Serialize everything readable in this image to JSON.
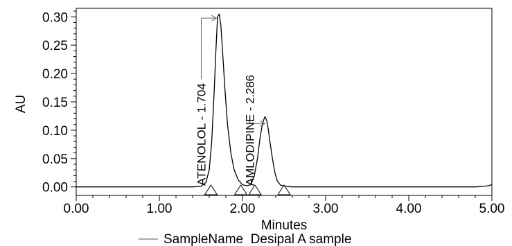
{
  "chart_data": {
    "type": "line",
    "xlabel": "Minutes",
    "ylabel": "AU",
    "xlim": [
      0.0,
      5.0
    ],
    "ylim": [
      -0.015,
      0.315
    ],
    "x_ticks": [
      "0.00",
      "1.00",
      "2.00",
      "3.00",
      "4.00",
      "5.00"
    ],
    "y_ticks": [
      "0.00",
      "0.05",
      "0.10",
      "0.15",
      "0.20",
      "0.25",
      "0.30"
    ],
    "series": [
      {
        "name": "SampleName Desipal A sample",
        "color": "#000000",
        "x": [
          0.0,
          0.5,
          1.0,
          1.4,
          1.5,
          1.56,
          1.6,
          1.63,
          1.66,
          1.68,
          1.7,
          1.72,
          1.74,
          1.76,
          1.79,
          1.82,
          1.86,
          1.9,
          1.95,
          2.0,
          2.05,
          2.1,
          2.14,
          2.18,
          2.21,
          2.24,
          2.27,
          2.29,
          2.31,
          2.33,
          2.36,
          2.39,
          2.42,
          2.46,
          2.52,
          2.6,
          3.0,
          3.5,
          4.0,
          4.5,
          4.8,
          4.9,
          4.95,
          5.0
        ],
        "y": [
          0.0,
          0.0,
          0.0,
          0.0,
          0.001,
          0.008,
          0.03,
          0.08,
          0.17,
          0.24,
          0.3,
          0.305,
          0.285,
          0.24,
          0.17,
          0.11,
          0.06,
          0.03,
          0.012,
          0.004,
          0.002,
          0.004,
          0.018,
          0.05,
          0.085,
          0.112,
          0.124,
          0.118,
          0.102,
          0.08,
          0.05,
          0.025,
          0.01,
          0.003,
          0.001,
          0.0,
          0.0,
          0.0,
          0.0,
          0.0,
          0.0,
          0.001,
          0.002,
          0.004
        ]
      }
    ],
    "peaks": [
      {
        "label": "ATENOLOL - 1.704",
        "x": 1.704,
        "y": 0.305
      },
      {
        "label": "AMLODIPINE - 2.286",
        "x": 2.286,
        "y": 0.119
      }
    ],
    "integration_markers_x": [
      1.62,
      1.98,
      2.15,
      2.5
    ],
    "legend": [
      "SampleName  Desipal A sample"
    ],
    "legend_position": "bottom-center",
    "grid": false
  }
}
